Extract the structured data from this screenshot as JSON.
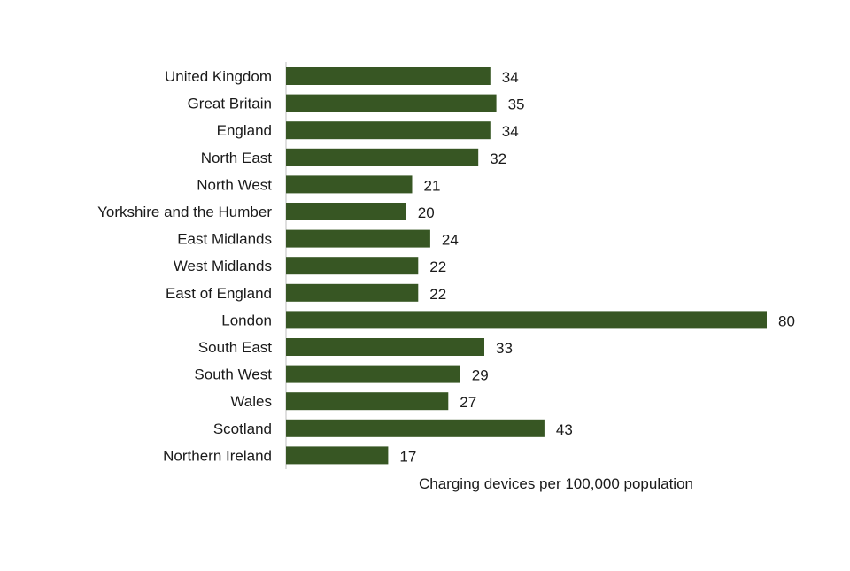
{
  "chart_data": {
    "type": "bar",
    "orientation": "horizontal",
    "categories": [
      "United Kingdom",
      "Great Britain",
      "England",
      "North East",
      "North West",
      "Yorkshire and the Humber",
      "East Midlands",
      "West Midlands",
      "East of England",
      "London",
      "South East",
      "South West",
      "Wales",
      "Scotland",
      "Northern Ireland"
    ],
    "values": [
      34,
      35,
      34,
      32,
      21,
      20,
      24,
      22,
      22,
      80,
      33,
      29,
      27,
      43,
      17
    ],
    "value_labels": [
      "34",
      "35",
      "34",
      "32",
      "21",
      "20",
      "24",
      "22",
      "22",
      "80",
      "33",
      "29",
      "27",
      "43",
      "17"
    ],
    "title": "",
    "xlabel": "Charging devices per 100,000 population",
    "ylabel": "",
    "xlim": [
      0,
      80
    ],
    "grid": false,
    "legend": "none",
    "bar_color": "#375623"
  }
}
